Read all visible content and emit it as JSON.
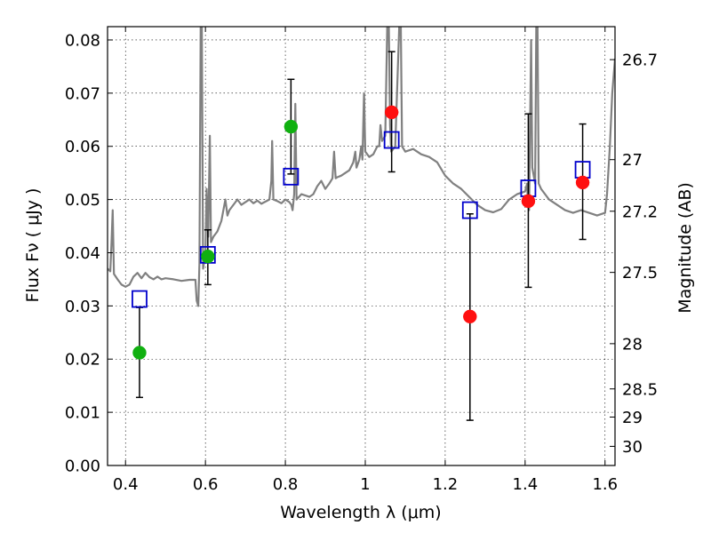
{
  "chart_data": {
    "type": "scatter",
    "xlabel": "Wavelength  λ (μm)",
    "ylabel": "Flux  Fν  ( μJy )",
    "y2label": "Magnitude (AB)",
    "xlim": [
      0.355,
      1.625
    ],
    "ylim": [
      0.0,
      0.0825
    ],
    "grid": true,
    "x_ticks": [
      0.4,
      0.6,
      0.8,
      1.0,
      1.2,
      1.4,
      1.6
    ],
    "x_tick_labels": [
      "0.4",
      "0.6",
      "0.8",
      "1",
      "1.2",
      "1.4",
      "1.6"
    ],
    "y_ticks": [
      0.0,
      0.01,
      0.02,
      0.03,
      0.04,
      0.05,
      0.06,
      0.07,
      0.08
    ],
    "y_tick_labels": [
      "0.00",
      "0.01",
      "0.02",
      "0.03",
      "0.04",
      "0.05",
      "0.06",
      "0.07",
      "0.08"
    ],
    "y2_ticks": [
      {
        "label": "26.7",
        "flux": 0.0763
      },
      {
        "label": "27",
        "flux": 0.0575
      },
      {
        "label": "27.2",
        "flux": 0.0478
      },
      {
        "label": "27.5",
        "flux": 0.0363
      },
      {
        "label": "28",
        "flux": 0.0229
      },
      {
        "label": "28.5",
        "flux": 0.0144
      },
      {
        "label": "29",
        "flux": 0.0091
      },
      {
        "label": "30",
        "flux": 0.0036
      }
    ],
    "series": [
      {
        "marker": "circle",
        "color": "#10b010",
        "points": [
          {
            "x": 0.435,
            "y": 0.0212,
            "err": [
              0.0128,
              0.0297
            ]
          },
          {
            "x": 0.606,
            "y": 0.0393,
            "err": [
              0.034,
              0.0443
            ]
          },
          {
            "x": 0.814,
            "y": 0.0637,
            "err": [
              0.0548,
              0.0726
            ]
          }
        ]
      },
      {
        "marker": "circle",
        "color": "#ff1010",
        "points": [
          {
            "x": 1.066,
            "y": 0.0664,
            "err": [
              0.0552,
              0.0778
            ]
          },
          {
            "x": 1.262,
            "y": 0.028,
            "err": [
              0.0085,
              0.0473
            ]
          },
          {
            "x": 1.408,
            "y": 0.0497,
            "err": [
              0.0335,
              0.0661
            ]
          },
          {
            "x": 1.544,
            "y": 0.0532,
            "err": [
              0.0425,
              0.0642
            ]
          }
        ]
      },
      {
        "marker": "square-open",
        "color": "#0000cc",
        "points": [
          {
            "x": 0.435,
            "y": 0.0313
          },
          {
            "x": 0.606,
            "y": 0.0396
          },
          {
            "x": 0.814,
            "y": 0.0543
          },
          {
            "x": 1.066,
            "y": 0.0612
          },
          {
            "x": 1.262,
            "y": 0.048
          },
          {
            "x": 1.408,
            "y": 0.0521
          },
          {
            "x": 1.544,
            "y": 0.0556
          }
        ]
      },
      {
        "marker": "line",
        "color": "#808080",
        "points": [
          {
            "x": 0.355,
            "y": 0.037
          },
          {
            "x": 0.362,
            "y": 0.0365
          },
          {
            "x": 0.365,
            "y": 0.042
          },
          {
            "x": 0.368,
            "y": 0.048
          },
          {
            "x": 0.371,
            "y": 0.036
          },
          {
            "x": 0.38,
            "y": 0.035
          },
          {
            "x": 0.39,
            "y": 0.034
          },
          {
            "x": 0.4,
            "y": 0.0336
          },
          {
            "x": 0.41,
            "y": 0.034
          },
          {
            "x": 0.42,
            "y": 0.0355
          },
          {
            "x": 0.43,
            "y": 0.0362
          },
          {
            "x": 0.44,
            "y": 0.0352
          },
          {
            "x": 0.45,
            "y": 0.0362
          },
          {
            "x": 0.46,
            "y": 0.0354
          },
          {
            "x": 0.47,
            "y": 0.035
          },
          {
            "x": 0.48,
            "y": 0.0355
          },
          {
            "x": 0.49,
            "y": 0.035
          },
          {
            "x": 0.5,
            "y": 0.0352
          },
          {
            "x": 0.52,
            "y": 0.035
          },
          {
            "x": 0.54,
            "y": 0.0347
          },
          {
            "x": 0.56,
            "y": 0.0349
          },
          {
            "x": 0.575,
            "y": 0.0349
          },
          {
            "x": 0.578,
            "y": 0.031
          },
          {
            "x": 0.582,
            "y": 0.03
          },
          {
            "x": 0.585,
            "y": 0.038
          },
          {
            "x": 0.588,
            "y": 0.0825
          },
          {
            "x": 0.591,
            "y": 0.0825
          },
          {
            "x": 0.594,
            "y": 0.037
          },
          {
            "x": 0.6,
            "y": 0.04
          },
          {
            "x": 0.603,
            "y": 0.052
          },
          {
            "x": 0.607,
            "y": 0.043
          },
          {
            "x": 0.611,
            "y": 0.062
          },
          {
            "x": 0.614,
            "y": 0.042
          },
          {
            "x": 0.62,
            "y": 0.043
          },
          {
            "x": 0.63,
            "y": 0.044
          },
          {
            "x": 0.64,
            "y": 0.046
          },
          {
            "x": 0.65,
            "y": 0.05
          },
          {
            "x": 0.655,
            "y": 0.047
          },
          {
            "x": 0.66,
            "y": 0.048
          },
          {
            "x": 0.67,
            "y": 0.049
          },
          {
            "x": 0.68,
            "y": 0.05
          },
          {
            "x": 0.69,
            "y": 0.049
          },
          {
            "x": 0.7,
            "y": 0.0495
          },
          {
            "x": 0.71,
            "y": 0.05
          },
          {
            "x": 0.72,
            "y": 0.0493
          },
          {
            "x": 0.73,
            "y": 0.0498
          },
          {
            "x": 0.74,
            "y": 0.0492
          },
          {
            "x": 0.75,
            "y": 0.0496
          },
          {
            "x": 0.76,
            "y": 0.05
          },
          {
            "x": 0.765,
            "y": 0.0535
          },
          {
            "x": 0.767,
            "y": 0.061
          },
          {
            "x": 0.77,
            "y": 0.05
          },
          {
            "x": 0.78,
            "y": 0.0497
          },
          {
            "x": 0.79,
            "y": 0.0493
          },
          {
            "x": 0.8,
            "y": 0.05
          },
          {
            "x": 0.81,
            "y": 0.0495
          },
          {
            "x": 0.815,
            "y": 0.049
          },
          {
            "x": 0.818,
            "y": 0.048
          },
          {
            "x": 0.822,
            "y": 0.051
          },
          {
            "x": 0.825,
            "y": 0.068
          },
          {
            "x": 0.828,
            "y": 0.05
          },
          {
            "x": 0.84,
            "y": 0.051
          },
          {
            "x": 0.86,
            "y": 0.0505
          },
          {
            "x": 0.87,
            "y": 0.051
          },
          {
            "x": 0.88,
            "y": 0.0525
          },
          {
            "x": 0.89,
            "y": 0.0535
          },
          {
            "x": 0.9,
            "y": 0.052
          },
          {
            "x": 0.91,
            "y": 0.053
          },
          {
            "x": 0.918,
            "y": 0.054
          },
          {
            "x": 0.922,
            "y": 0.059
          },
          {
            "x": 0.926,
            "y": 0.054
          },
          {
            "x": 0.93,
            "y": 0.0542
          },
          {
            "x": 0.94,
            "y": 0.0545
          },
          {
            "x": 0.95,
            "y": 0.055
          },
          {
            "x": 0.96,
            "y": 0.0555
          },
          {
            "x": 0.97,
            "y": 0.057
          },
          {
            "x": 0.975,
            "y": 0.059
          },
          {
            "x": 0.978,
            "y": 0.056
          },
          {
            "x": 0.985,
            "y": 0.0575
          },
          {
            "x": 0.99,
            "y": 0.06
          },
          {
            "x": 0.993,
            "y": 0.0575
          },
          {
            "x": 0.997,
            "y": 0.07
          },
          {
            "x": 1.0,
            "y": 0.059
          },
          {
            "x": 1.01,
            "y": 0.058
          },
          {
            "x": 1.02,
            "y": 0.0585
          },
          {
            "x": 1.03,
            "y": 0.06
          },
          {
            "x": 1.035,
            "y": 0.06
          },
          {
            "x": 1.038,
            "y": 0.064
          },
          {
            "x": 1.042,
            "y": 0.061
          },
          {
            "x": 1.05,
            "y": 0.062
          },
          {
            "x": 1.055,
            "y": 0.0825
          },
          {
            "x": 1.059,
            "y": 0.0825
          },
          {
            "x": 1.062,
            "y": 0.064
          },
          {
            "x": 1.065,
            "y": 0.059
          },
          {
            "x": 1.075,
            "y": 0.06
          },
          {
            "x": 1.085,
            "y": 0.0825
          },
          {
            "x": 1.089,
            "y": 0.0825
          },
          {
            "x": 1.092,
            "y": 0.06
          },
          {
            "x": 1.1,
            "y": 0.059
          },
          {
            "x": 1.12,
            "y": 0.0595
          },
          {
            "x": 1.14,
            "y": 0.0585
          },
          {
            "x": 1.16,
            "y": 0.058
          },
          {
            "x": 1.18,
            "y": 0.057
          },
          {
            "x": 1.2,
            "y": 0.0545
          },
          {
            "x": 1.22,
            "y": 0.053
          },
          {
            "x": 1.24,
            "y": 0.052
          },
          {
            "x": 1.26,
            "y": 0.0505
          },
          {
            "x": 1.28,
            "y": 0.049
          },
          {
            "x": 1.3,
            "y": 0.048
          },
          {
            "x": 1.32,
            "y": 0.0476
          },
          {
            "x": 1.34,
            "y": 0.0482
          },
          {
            "x": 1.36,
            "y": 0.05
          },
          {
            "x": 1.38,
            "y": 0.051
          },
          {
            "x": 1.4,
            "y": 0.0515
          },
          {
            "x": 1.405,
            "y": 0.053
          },
          {
            "x": 1.407,
            "y": 0.049
          },
          {
            "x": 1.41,
            "y": 0.048
          },
          {
            "x": 1.415,
            "y": 0.08
          },
          {
            "x": 1.418,
            "y": 0.056
          },
          {
            "x": 1.425,
            "y": 0.053
          },
          {
            "x": 1.428,
            "y": 0.0825
          },
          {
            "x": 1.431,
            "y": 0.0825
          },
          {
            "x": 1.434,
            "y": 0.053
          },
          {
            "x": 1.44,
            "y": 0.052
          },
          {
            "x": 1.46,
            "y": 0.05
          },
          {
            "x": 1.48,
            "y": 0.049
          },
          {
            "x": 1.5,
            "y": 0.048
          },
          {
            "x": 1.52,
            "y": 0.0475
          },
          {
            "x": 1.54,
            "y": 0.048
          },
          {
            "x": 1.56,
            "y": 0.0475
          },
          {
            "x": 1.58,
            "y": 0.047
          },
          {
            "x": 1.6,
            "y": 0.0475
          },
          {
            "x": 1.605,
            "y": 0.051
          },
          {
            "x": 1.612,
            "y": 0.06
          },
          {
            "x": 1.618,
            "y": 0.07
          },
          {
            "x": 1.625,
            "y": 0.0765
          }
        ]
      }
    ]
  }
}
